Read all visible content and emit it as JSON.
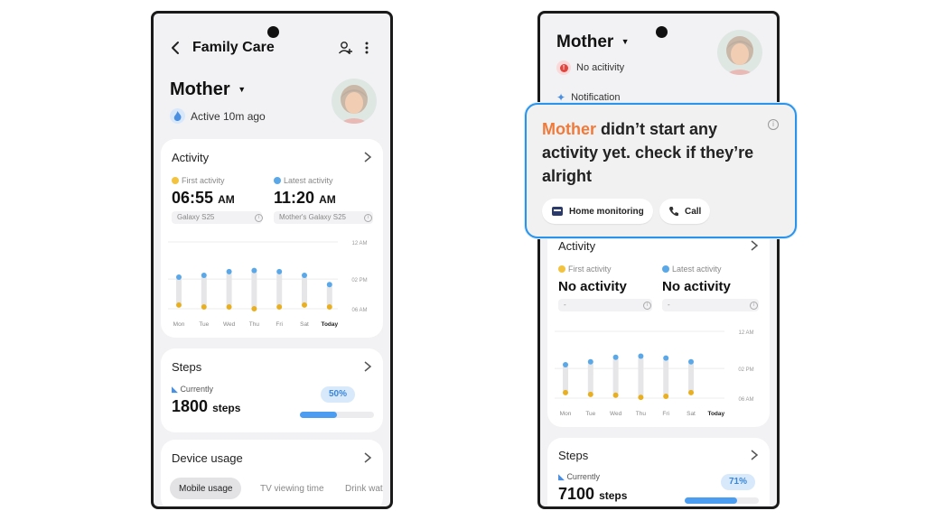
{
  "left": {
    "header": {
      "title": "Family Care"
    },
    "profile": {
      "name": "Mother",
      "status": "Active 10m ago"
    },
    "activity": {
      "title": "Activity",
      "first_label": "First activity",
      "first_time": "06:55",
      "first_ampm": "AM",
      "first_device": "Galaxy S25",
      "latest_label": "Latest activity",
      "latest_time": "11:20",
      "latest_ampm": "AM",
      "latest_device": "Mother's Galaxy S25"
    },
    "steps": {
      "title": "Steps",
      "currently_label": "Currently",
      "count": "1800",
      "unit": "steps",
      "percent_label": "50%",
      "progress": 0.5
    },
    "device_usage": {
      "title": "Device usage",
      "tabs": [
        "Mobile usage",
        "TV viewing time",
        "Drink water"
      ]
    }
  },
  "right": {
    "profile": {
      "name": "Mother",
      "status": "No acitivity"
    },
    "notification_label": "Notification",
    "popup": {
      "highlight": "Mother",
      "message": " didn’t start any activity yet. check if they’re alright",
      "home_button": "Home monitoring",
      "call_button": "Call"
    },
    "activity": {
      "title": "Activity",
      "first_label": "First activity",
      "first_value": "No activity",
      "first_device": "-",
      "latest_label": "Latest activity",
      "latest_value": "No activity",
      "latest_device": "-"
    },
    "steps": {
      "title": "Steps",
      "currently_label": "Currently",
      "count": "7100",
      "unit": "steps",
      "percent_label": "71%",
      "progress": 0.71
    }
  },
  "colors": {
    "accent_blue": "#2a94ec",
    "highlight_orange": "#f07a3a",
    "dot_blue": "#5aa8e8",
    "dot_yellow": "#e8b020",
    "progress_blue": "#4a9df0"
  },
  "chart_data": [
    {
      "type": "range-bar",
      "categories": [
        "Mon",
        "Tue",
        "Wed",
        "Thu",
        "Fri",
        "Sat",
        "Today"
      ],
      "y_tick_labels": [
        "12 AM",
        "02 PM",
        "06 AM"
      ],
      "start_hour": [
        7.0,
        6.5,
        6.5,
        6.0,
        6.5,
        7.0,
        6.5
      ],
      "end_hour": [
        14.5,
        15.0,
        16.0,
        16.3,
        16.0,
        15.0,
        12.5
      ]
    },
    {
      "type": "range-bar",
      "categories": [
        "Mon",
        "Tue",
        "Wed",
        "Thu",
        "Fri",
        "Sat",
        "Today"
      ],
      "y_tick_labels": [
        "12 AM",
        "02 PM",
        "06 AM"
      ],
      "start_hour": [
        7.5,
        7.0,
        6.8,
        6.2,
        6.5,
        7.5,
        null
      ],
      "end_hour": [
        15.0,
        15.8,
        17.0,
        17.3,
        16.8,
        15.8,
        null
      ]
    }
  ]
}
